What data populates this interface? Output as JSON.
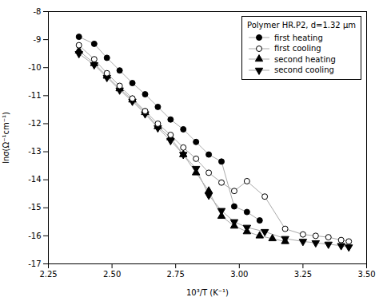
{
  "chart_data": {
    "type": "line",
    "xlabel": "10³/T (K⁻¹)",
    "ylabel": "lnσ(Ω⁻¹cm⁻¹)",
    "xlim": [
      2.25,
      3.5
    ],
    "ylim": [
      -17,
      -8
    ],
    "xticks": [
      2.25,
      {
        "value": 2.5,
        "label": "2.50"
      },
      2.75,
      {
        "value": 3,
        "label": "3.00"
      },
      3.25,
      {
        "value": 3.5,
        "label": "3.50"
      }
    ],
    "yticks": [
      -17,
      -16,
      -15,
      -14,
      -13,
      -12,
      -11,
      -10,
      -9,
      -8
    ],
    "legend_title": "Polymer HR.P2, d=1.32 μm",
    "legend": "upper right",
    "grid": false,
    "color": "#aaaaaa",
    "series": [
      {
        "name": "first heating",
        "color": "#000000",
        "marker": "circle",
        "x": [
          2.37,
          2.43,
          2.48,
          2.53,
          2.58,
          2.63,
          2.68,
          2.73,
          2.78,
          2.83,
          2.88,
          2.93,
          2.98,
          3.03,
          3.08
        ],
        "values": [
          -8.9,
          -9.15,
          -9.65,
          -10.1,
          -10.55,
          -10.95,
          -11.4,
          -11.85,
          -12.2,
          -12.65,
          -13.1,
          -13.35,
          -14.95,
          -15.15,
          -15.45
        ]
      },
      {
        "name": "first cooling",
        "color": "#000000",
        "marker": "open_circle",
        "x": [
          2.37,
          2.43,
          2.48,
          2.53,
          2.58,
          2.63,
          2.68,
          2.73,
          2.78,
          2.83,
          2.88,
          2.93,
          2.98,
          3.03,
          3.1,
          3.18,
          3.25,
          3.3,
          3.35,
          3.4,
          3.43
        ],
        "values": [
          -9.2,
          -9.7,
          -10.2,
          -10.65,
          -11.1,
          -11.55,
          -12.0,
          -12.4,
          -12.85,
          -13.25,
          -13.75,
          -14.1,
          -14.4,
          -14.05,
          -14.6,
          -15.75,
          -15.95,
          -16.0,
          -16.05,
          -16.15,
          -16.2
        ]
      },
      {
        "name": "second heating",
        "color": "#000000",
        "marker": "triangle_up",
        "x": [
          2.37,
          2.43,
          2.48,
          2.53,
          2.58,
          2.63,
          2.68,
          2.73,
          2.78,
          2.83,
          2.88,
          2.93,
          2.98,
          3.03,
          3.08,
          3.13,
          3.18
        ],
        "values": [
          -9.4,
          -9.85,
          -10.3,
          -10.75,
          -11.15,
          -11.6,
          -12.1,
          -12.5,
          -13.1,
          -13.75,
          -14.4,
          -15.3,
          -15.65,
          -15.85,
          -16.0,
          -16.1,
          -16.2
        ]
      },
      {
        "name": "second cooling",
        "color": "#000000",
        "marker": "triangle_down",
        "x": [
          2.37,
          2.43,
          2.48,
          2.53,
          2.58,
          2.63,
          2.68,
          2.73,
          2.78,
          2.83,
          2.88,
          2.93,
          2.98,
          3.03,
          3.1,
          3.18,
          3.25,
          3.3,
          3.35,
          3.4,
          3.43
        ],
        "values": [
          -9.5,
          -9.9,
          -10.35,
          -10.8,
          -11.2,
          -11.65,
          -12.15,
          -12.6,
          -13.1,
          -13.6,
          -14.55,
          -15.1,
          -15.5,
          -15.7,
          -15.85,
          -16.1,
          -16.2,
          -16.25,
          -16.3,
          -16.35,
          -16.4
        ]
      }
    ]
  }
}
